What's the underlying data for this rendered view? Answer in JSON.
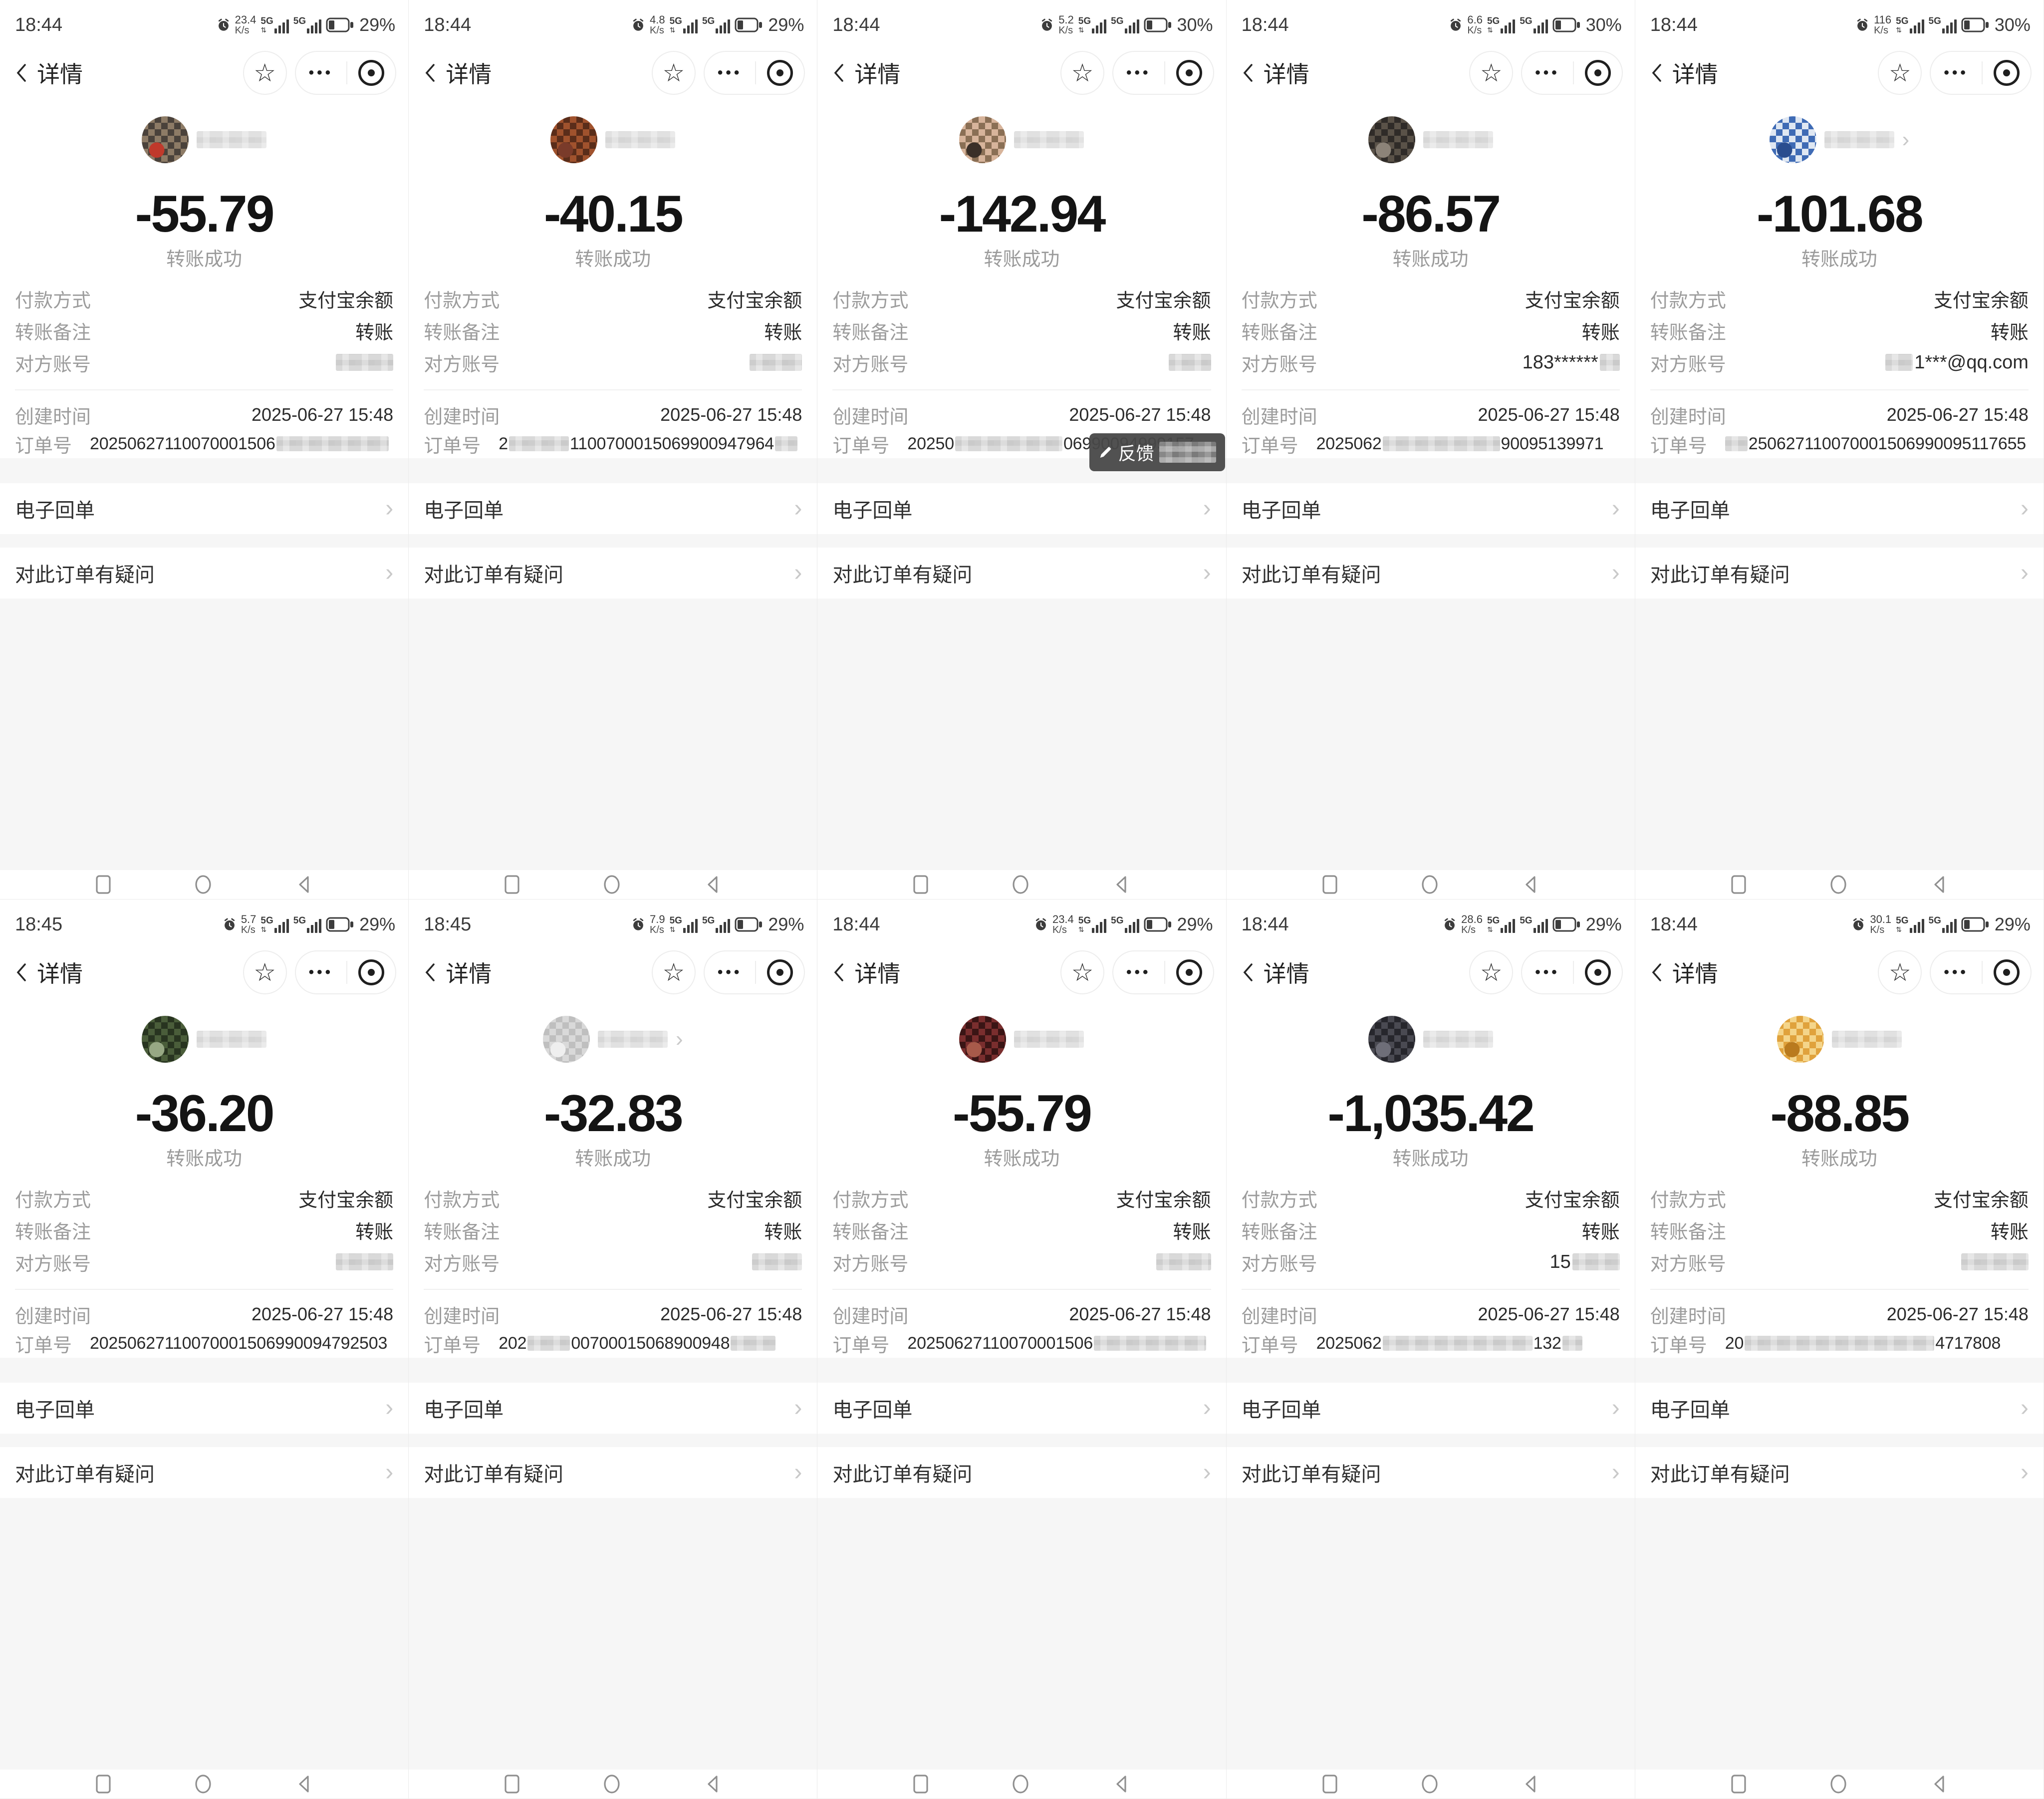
{
  "common": {
    "back_title": "详情",
    "transfer_status": "转账成功",
    "pay_method_label": "付款方式",
    "pay_method_value": "支付宝余额",
    "note_label": "转账备注",
    "note_value": "转账",
    "account_label": "对方账号",
    "created_label": "创建时间",
    "created_value": "2025-06-27 15:48",
    "order_label": "订单号",
    "receipt_label": "电子回单",
    "question_label": "对此订单有疑问",
    "speed_unit": "K/s",
    "network_type": "5G",
    "toast_text": "反馈"
  },
  "icons": {
    "star": "☆",
    "dots": "•••",
    "chevron": "›",
    "updown": "⇅"
  },
  "panels": [
    {
      "time": "18:44",
      "speed": "23.4",
      "battery": "29%",
      "amount": "-55.79",
      "avatar": [
        "#8d7b66",
        "#4a423b",
        "#c0392b"
      ],
      "chevron": false,
      "toast": false,
      "account": [
        {
          "b": 115
        }
      ],
      "order": [
        {
          "t": "20250627110070001506"
        },
        {
          "b": 225
        }
      ]
    },
    {
      "time": "18:44",
      "speed": "4.8",
      "battery": "29%",
      "amount": "-40.15",
      "avatar": [
        "#a0522d",
        "#5a2d1a",
        "#7a3b2a"
      ],
      "chevron": false,
      "toast": false,
      "account": [
        {
          "b": 105
        }
      ],
      "order": [
        {
          "t": "2"
        },
        {
          "b": 120
        },
        {
          "t": "1100700015069900947964"
        },
        {
          "b": 45
        }
      ]
    },
    {
      "time": "18:44",
      "speed": "5.2",
      "battery": "30%",
      "amount": "-142.94",
      "avatar": [
        "#d7b49b",
        "#8a6f55",
        "#3a2f28"
      ],
      "chevron": false,
      "toast": true,
      "account": [
        {
          "b": 85
        }
      ],
      "order": [
        {
          "t": "20250"
        },
        {
          "b": 215
        },
        {
          "t": "06990094999157"
        }
      ]
    },
    {
      "time": "18:44",
      "speed": "6.6",
      "battery": "30%",
      "amount": "-86.57",
      "avatar": [
        "#5a5248",
        "#2f2b28",
        "#8c8378"
      ],
      "chevron": false,
      "toast": false,
      "account": [
        {
          "t": "183******"
        },
        {
          "b": 40
        }
      ],
      "order": [
        {
          "t": "2025062"
        },
        {
          "b": 235
        },
        {
          "t": "90095139971"
        }
      ]
    },
    {
      "time": "18:44",
      "speed": "116",
      "battery": "30%",
      "amount": "-101.68",
      "avatar": [
        "#3f6bb5",
        "#dfe7f2",
        "#2a4d8f"
      ],
      "chevron": true,
      "toast": false,
      "account": [
        {
          "b": 55
        },
        {
          "t": "1***@qq.com"
        }
      ],
      "order": [
        {
          "b": 45
        },
        {
          "t": "250627110070001506990095117655"
        }
      ]
    },
    {
      "time": "18:45",
      "speed": "5.7",
      "battery": "29%",
      "amount": "-36.20",
      "avatar": [
        "#4a5d3a",
        "#283420",
        "#97a884"
      ],
      "chevron": false,
      "toast": false,
      "account": [
        {
          "b": 115
        }
      ],
      "order": [
        {
          "t": "20250627110070001506990094792503"
        }
      ]
    },
    {
      "time": "18:45",
      "speed": "7.9",
      "battery": "29%",
      "amount": "-32.83",
      "avatar": [
        "#d9d9d9",
        "#bfbfbf",
        "#efefef"
      ],
      "chevron": true,
      "toast": false,
      "account": [
        {
          "b": 100
        }
      ],
      "order": [
        {
          "t": "202"
        },
        {
          "b": 85
        },
        {
          "t": "00700015068900948"
        },
        {
          "b": 90
        }
      ]
    },
    {
      "time": "18:44",
      "speed": "23.4",
      "battery": "29%",
      "amount": "-55.79",
      "avatar": [
        "#7a2e2e",
        "#3a1515",
        "#a85a4a"
      ],
      "chevron": false,
      "toast": false,
      "account": [
        {
          "b": 110
        }
      ],
      "order": [
        {
          "t": "20250627110070001506"
        },
        {
          "b": 225
        }
      ]
    },
    {
      "time": "18:44",
      "speed": "28.6",
      "battery": "29%",
      "amount": "-1,035.42",
      "avatar": [
        "#4a4a52",
        "#26262c",
        "#6e6e78"
      ],
      "chevron": false,
      "toast": false,
      "account": [
        {
          "t": "15"
        },
        {
          "b": 95
        }
      ],
      "order": [
        {
          "t": "2025062"
        },
        {
          "b": 300
        },
        {
          "t": "132"
        },
        {
          "b": 40
        }
      ]
    },
    {
      "time": "18:44",
      "speed": "30.1",
      "battery": "29%",
      "amount": "-88.85",
      "avatar": [
        "#e0a23c",
        "#f4d58a",
        "#b97a1e"
      ],
      "chevron": false,
      "toast": false,
      "account": [
        {
          "b": 135
        }
      ],
      "order": [
        {
          "t": "20"
        },
        {
          "b": 380
        },
        {
          "t": "4717808"
        }
      ]
    }
  ]
}
